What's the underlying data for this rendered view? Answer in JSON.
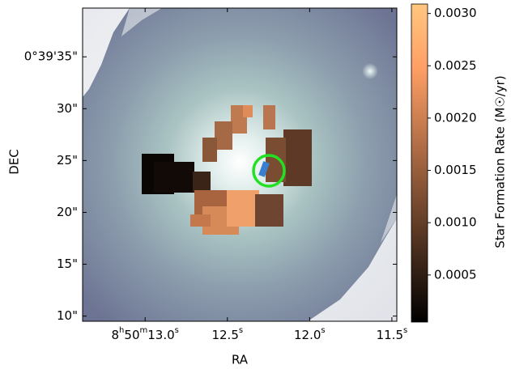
{
  "chart_data": {
    "type": "image",
    "xlabel": "RA",
    "ylabel": "DEC",
    "colorbar_label": "Star Formation Rate (M☉/yr)",
    "xlim": [
      13.38,
      11.47
    ],
    "xticks": [
      {
        "value": 13.0,
        "label": "8h50m13.0s"
      },
      {
        "value": 12.5,
        "label": "12.5s"
      },
      {
        "value": 12.0,
        "label": "12.0s"
      },
      {
        "value": 11.5,
        "label": "11.5s"
      }
    ],
    "ylim": [
      9.5,
      39.7
    ],
    "yticks": [
      {
        "value": 35,
        "label": "0°39'35\""
      },
      {
        "value": 30,
        "label": "30\""
      },
      {
        "value": 25,
        "label": "25\""
      },
      {
        "value": 20,
        "label": "20\""
      },
      {
        "value": 15,
        "label": "15\""
      },
      {
        "value": 10,
        "label": "10\""
      }
    ],
    "clim": [
      5e-05,
      0.00309
    ],
    "cticks": [
      {
        "value": 0.0005,
        "label": "0.0005"
      },
      {
        "value": 0.001,
        "label": "0.0010"
      },
      {
        "value": 0.0015,
        "label": "0.0015"
      },
      {
        "value": 0.002,
        "label": "0.0020"
      },
      {
        "value": 0.0025,
        "label": "0.0025"
      },
      {
        "value": 0.003,
        "label": "0.0030"
      }
    ]
  }
}
